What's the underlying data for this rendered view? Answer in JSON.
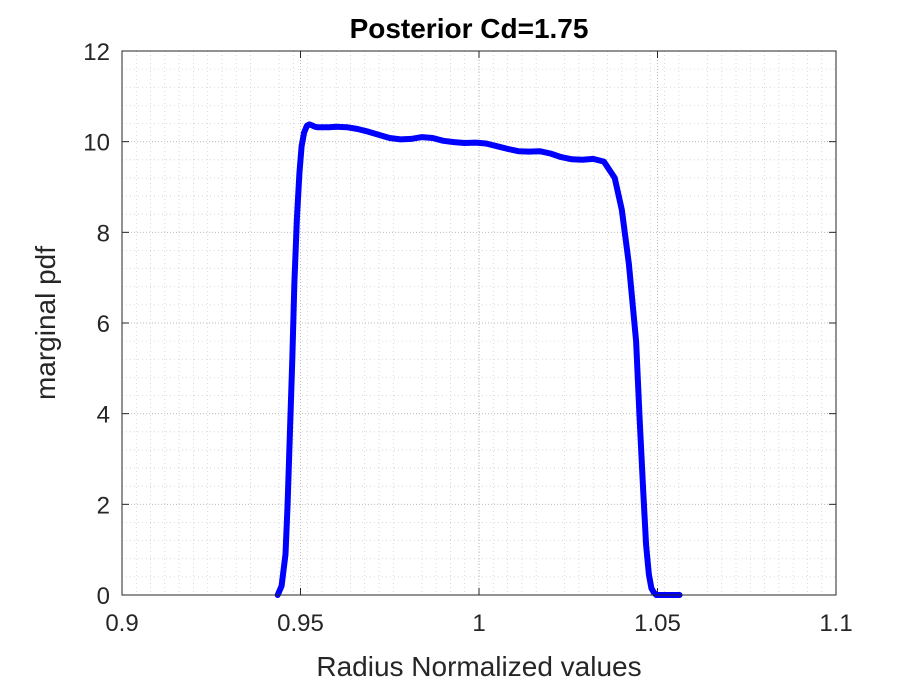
{
  "chart_data": {
    "type": "line",
    "title": "Posterior Cd=1.75",
    "xlabel": "Radius Normalized values",
    "ylabel": "marginal pdf",
    "xlim": [
      0.9,
      1.1
    ],
    "ylim": [
      0,
      12
    ],
    "x_ticks": [
      0.9,
      0.95,
      1.0,
      1.05,
      1.1
    ],
    "x_tick_labels": [
      "0.9",
      "0.95",
      "1",
      "1.05",
      "1.1"
    ],
    "y_ticks": [
      0,
      2,
      4,
      6,
      8,
      10,
      12
    ],
    "y_tick_labels": [
      "0",
      "2",
      "4",
      "6",
      "8",
      "10",
      "12"
    ],
    "grid": true,
    "minor_grid": true,
    "series": [
      {
        "color": "#0000ff",
        "x": [
          0.9436,
          0.9447,
          0.9458,
          0.9464,
          0.947,
          0.9477,
          0.9483,
          0.949,
          0.9497,
          0.9503,
          0.951,
          0.9518,
          0.9525,
          0.9532,
          0.954,
          0.9547,
          0.9555,
          0.9565,
          0.958,
          0.96,
          0.963,
          0.966,
          0.969,
          0.972,
          0.975,
          0.978,
          0.981,
          0.984,
          0.987,
          0.99,
          0.993,
          0.996,
          0.999,
          1.002,
          1.005,
          1.008,
          1.011,
          1.014,
          1.017,
          1.02,
          1.023,
          1.026,
          1.029,
          1.032,
          1.035,
          1.038,
          1.04,
          1.042,
          1.044,
          1.045,
          1.046,
          1.0468,
          1.0476,
          1.0483,
          1.049,
          1.0497,
          1.0503,
          1.051,
          1.0517,
          1.0523,
          1.053,
          1.0537,
          1.0543,
          1.055,
          1.0557,
          1.0562
        ],
        "y": [
          0.0,
          0.2,
          0.9,
          2.0,
          3.5,
          5.2,
          6.9,
          8.3,
          9.3,
          9.9,
          10.2,
          10.35,
          10.38,
          10.36,
          10.33,
          10.32,
          10.32,
          10.32,
          10.32,
          10.33,
          10.32,
          10.28,
          10.22,
          10.15,
          10.08,
          10.05,
          10.06,
          10.1,
          10.08,
          10.02,
          9.99,
          9.97,
          9.98,
          9.96,
          9.9,
          9.84,
          9.79,
          9.78,
          9.79,
          9.74,
          9.66,
          9.61,
          9.6,
          9.62,
          9.56,
          9.2,
          8.5,
          7.3,
          5.6,
          3.9,
          2.3,
          1.1,
          0.45,
          0.15,
          0.05,
          0.0,
          0.0,
          0.0,
          0.0,
          0.0,
          0.0,
          0.0,
          0.0,
          0.0,
          0.0,
          0.0
        ]
      }
    ]
  }
}
